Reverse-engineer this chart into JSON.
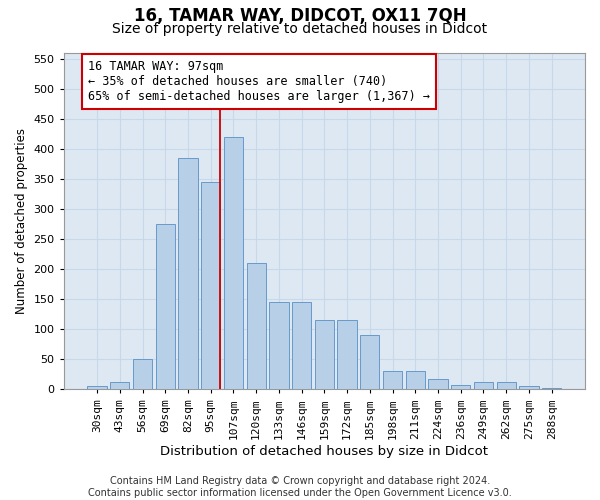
{
  "title1": "16, TAMAR WAY, DIDCOT, OX11 7QH",
  "title2": "Size of property relative to detached houses in Didcot",
  "xlabel": "Distribution of detached houses by size in Didcot",
  "ylabel": "Number of detached properties",
  "categories": [
    "30sqm",
    "43sqm",
    "56sqm",
    "69sqm",
    "82sqm",
    "95sqm",
    "107sqm",
    "120sqm",
    "133sqm",
    "146sqm",
    "159sqm",
    "172sqm",
    "185sqm",
    "198sqm",
    "211sqm",
    "224sqm",
    "236sqm",
    "249sqm",
    "262sqm",
    "275sqm",
    "288sqm"
  ],
  "values": [
    5,
    12,
    50,
    275,
    385,
    345,
    420,
    210,
    145,
    145,
    115,
    115,
    90,
    30,
    30,
    18,
    8,
    12,
    12,
    5,
    3
  ],
  "bar_color": "#b8cfe8",
  "bar_edgecolor": "#6699cc",
  "vline_color": "#cc0000",
  "vline_x_index": 5.42,
  "annotation_text": "16 TAMAR WAY: 97sqm\n← 35% of detached houses are smaller (740)\n65% of semi-detached houses are larger (1,367) →",
  "annotation_box_facecolor": "#ffffff",
  "annotation_box_edgecolor": "#cc0000",
  "ylim": [
    0,
    560
  ],
  "yticks": [
    0,
    50,
    100,
    150,
    200,
    250,
    300,
    350,
    400,
    450,
    500,
    550
  ],
  "grid_color": "#c8d8e8",
  "bg_color": "#dde8f3",
  "fig_bg_color": "#ffffff",
  "title1_fontsize": 12,
  "title2_fontsize": 10,
  "xlabel_fontsize": 9.5,
  "ylabel_fontsize": 8.5,
  "tick_fontsize": 8,
  "annotation_fontsize": 8.5,
  "footer_fontsize": 7,
  "footer": "Contains HM Land Registry data © Crown copyright and database right 2024.\nContains public sector information licensed under the Open Government Licence v3.0."
}
